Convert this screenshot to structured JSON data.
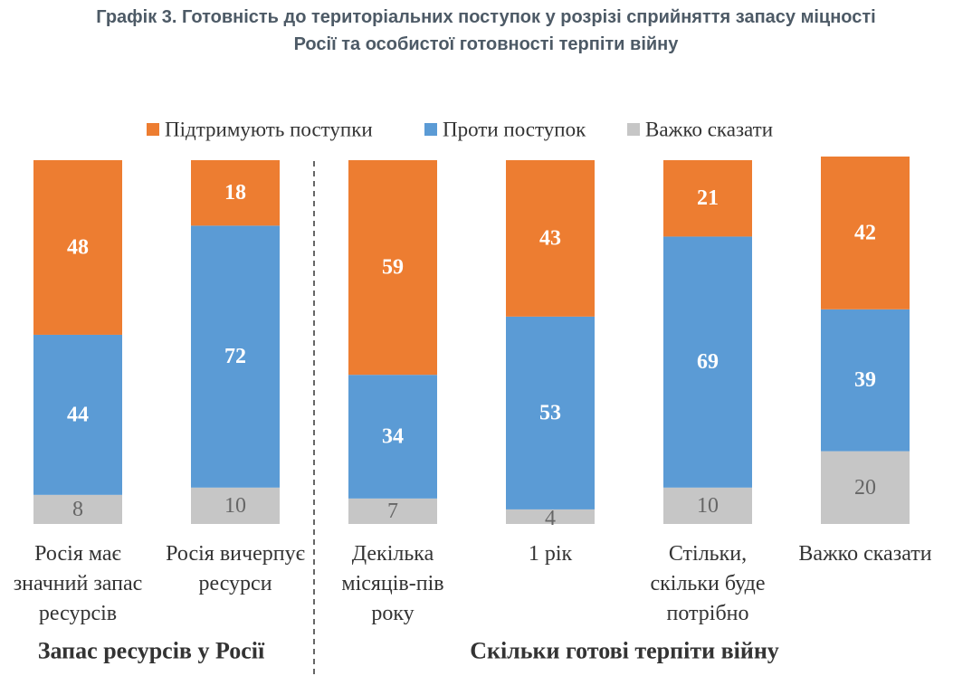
{
  "title": {
    "line1": "Графік 3. Готовність до територіальних поступок у розрізі сприйняття запасу міцності",
    "line2": "Росії та особистої готовності терпіти війну"
  },
  "colors": {
    "support": "#ed7d31",
    "against": "#5b9bd5",
    "unsure": "#c6c6c6",
    "divider": "#666666",
    "text": "#333333"
  },
  "chart_data": {
    "type": "bar",
    "stacked": true,
    "legend_position": "top",
    "grid": false,
    "ylim": [
      0,
      100
    ],
    "series": [
      {
        "name": "Підтримують поступки",
        "key": "support",
        "values": [
          48,
          18,
          59,
          43,
          21,
          42
        ]
      },
      {
        "name": "Проти поступок",
        "key": "against",
        "values": [
          44,
          72,
          34,
          53,
          69,
          39
        ]
      },
      {
        "name": "Важко сказати",
        "key": "unsure",
        "values": [
          8,
          10,
          7,
          4,
          10,
          20
        ]
      }
    ],
    "categories": [
      [
        "Росія має",
        "значний запас",
        "ресурсів"
      ],
      [
        "Росія вичерпує",
        "ресурси"
      ],
      [
        "Декілька",
        "місяців-пів",
        "року"
      ],
      [
        "1 рік"
      ],
      [
        "Стільки,",
        "скільки буде",
        "потрібно"
      ],
      [
        "Важко сказати"
      ]
    ],
    "groups": [
      {
        "label": "Запас ресурсів у Росії",
        "bars": [
          0,
          1
        ]
      },
      {
        "label": "Скільки готові терпіти війну",
        "bars": [
          2,
          3,
          4,
          5
        ]
      }
    ]
  }
}
